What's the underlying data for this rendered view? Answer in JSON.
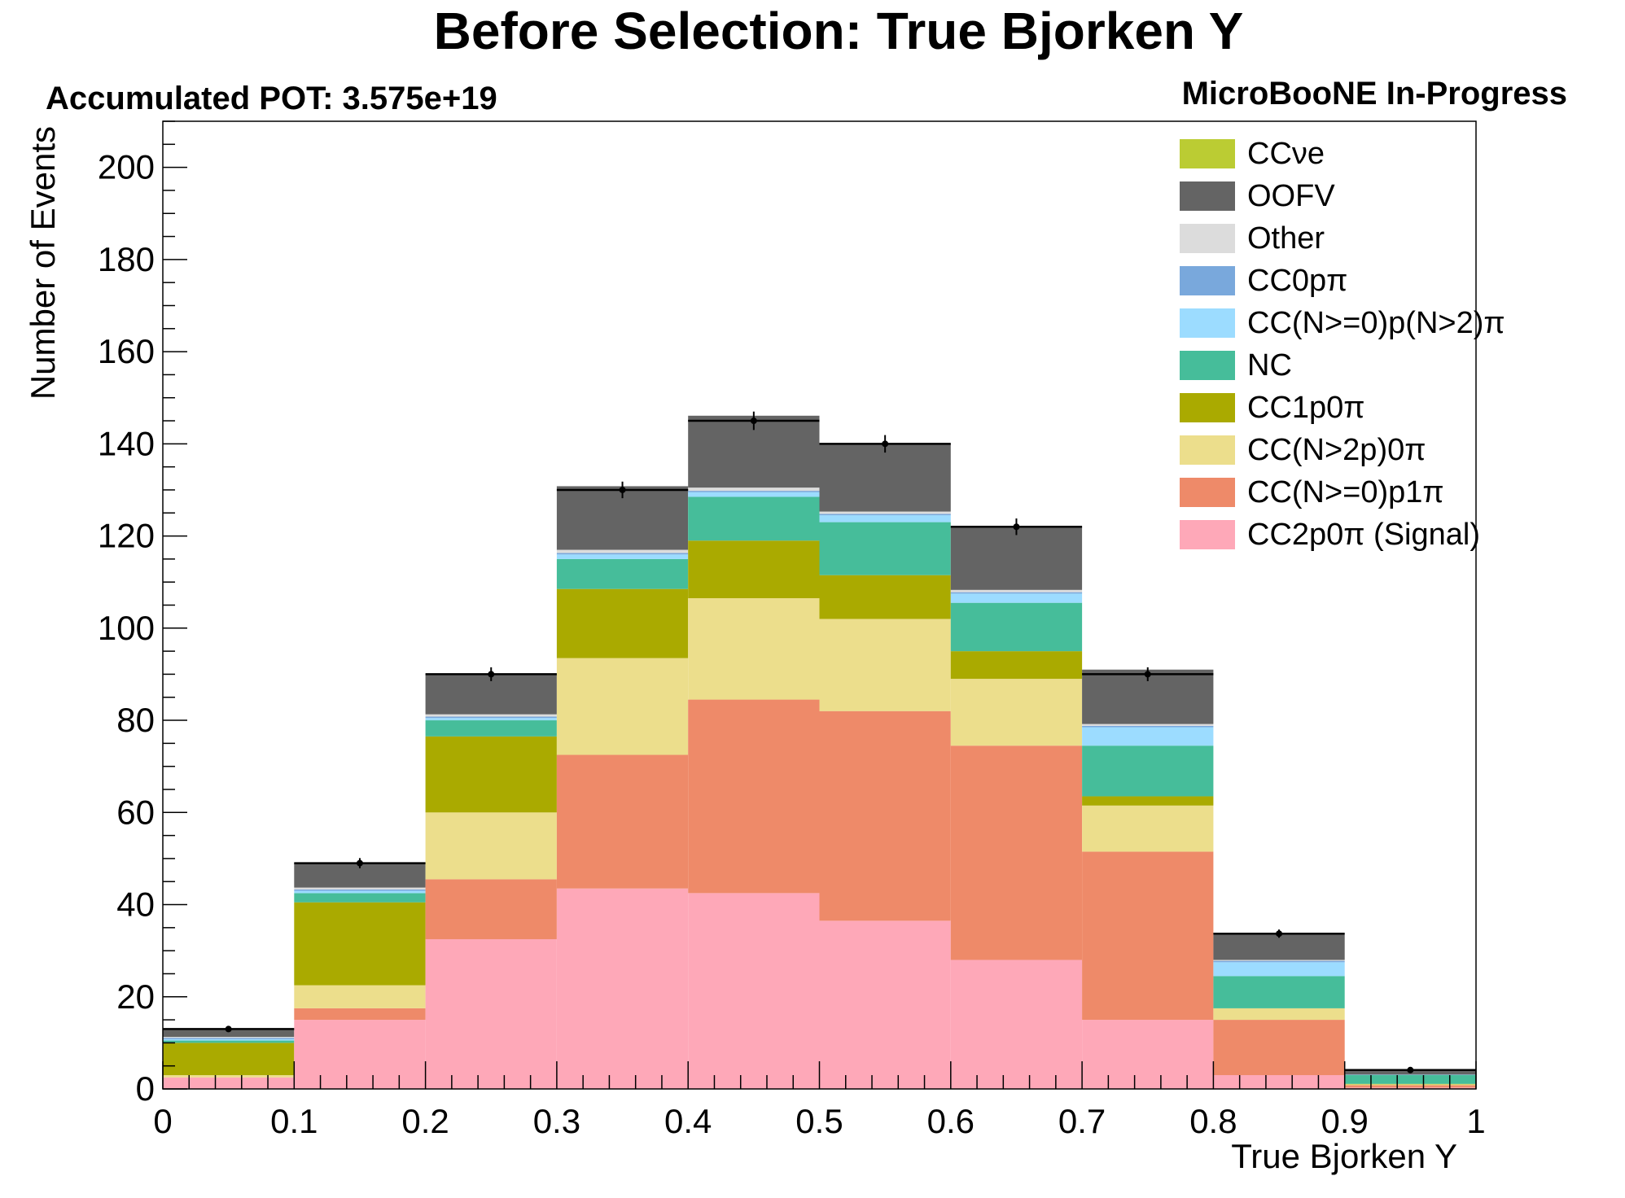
{
  "chart_data": {
    "type": "bar",
    "stacked": true,
    "title": "Before Selection: True Bjorken Y",
    "subtitle_left": "Accumulated POT: 3.575e+19",
    "subtitle_right": "MicroBooNE In-Progress",
    "xlabel": "True Bjorken Y",
    "ylabel": "Number of Events",
    "xlim": [
      0,
      1
    ],
    "ylim": [
      0,
      210
    ],
    "x_ticks": [
      "0",
      "0.1",
      "0.2",
      "0.3",
      "0.4",
      "0.5",
      "0.6",
      "0.7",
      "0.8",
      "0.9",
      "1"
    ],
    "y_ticks": [
      "0",
      "20",
      "40",
      "60",
      "80",
      "100",
      "120",
      "140",
      "160",
      "180",
      "200"
    ],
    "bin_edges": [
      0,
      0.1,
      0.2,
      0.3,
      0.4,
      0.5,
      0.6,
      0.7,
      0.8,
      0.9,
      1.0
    ],
    "legend_position": "top-right",
    "series": [
      {
        "name": "CC2p0π (Signal)",
        "color": "#fea8b8",
        "values": [
          2.5,
          15,
          32.5,
          43.5,
          42.5,
          36.5,
          28,
          15,
          3,
          0.3
        ]
      },
      {
        "name": "CC(N>=0)p1π",
        "color": "#ee8a69",
        "values": [
          0,
          2.5,
          13,
          29,
          42,
          45.5,
          46.5,
          36.5,
          12,
          0.5
        ]
      },
      {
        "name": "CC(N>2p)0π",
        "color": "#ecde8c",
        "values": [
          0.5,
          5,
          14.5,
          21,
          22,
          20,
          14.5,
          10,
          2.5,
          0.2
        ]
      },
      {
        "name": "CC1p0π",
        "color": "#aaaa00",
        "values": [
          7,
          18,
          16.5,
          15,
          12.5,
          9.5,
          6,
          2,
          0,
          0.1
        ]
      },
      {
        "name": "NC",
        "color": "#46bd9a",
        "values": [
          0.5,
          2,
          3.5,
          6.5,
          9.5,
          11.5,
          10.5,
          11,
          7,
          1.9
        ]
      },
      {
        "name": "CC(N>=0)p(N>2)π",
        "color": "#9cdcff",
        "values": [
          0.3,
          0.5,
          0.5,
          1,
          1,
          1.5,
          2,
          4,
          3,
          0.1
        ]
      },
      {
        "name": "CC0pπ",
        "color": "#79a8dc",
        "values": [
          0.3,
          0.3,
          0.3,
          0.3,
          0.3,
          0.3,
          0.3,
          0.3,
          0.3,
          0
        ]
      },
      {
        "name": "Other",
        "color": "#dcdcdc",
        "values": [
          0.2,
          0.4,
          0.5,
          0.7,
          0.7,
          0.5,
          0.5,
          0.4,
          0.2,
          0
        ]
      },
      {
        "name": "OOFV",
        "color": "#646464",
        "values": [
          1.7,
          5.3,
          8.7,
          13.8,
          15.6,
          14.7,
          13.7,
          11.8,
          5.5,
          1.0
        ]
      },
      {
        "name": "CCνe",
        "color": "#bbcc33",
        "values": [
          0,
          0,
          0,
          0,
          0,
          0,
          0,
          0,
          0,
          0
        ]
      }
    ],
    "totals": [
      13,
      49,
      90,
      130,
      145,
      140,
      122,
      90,
      33.7,
      4.1
    ],
    "errors": [
      0.6,
      1.1,
      1.5,
      1.8,
      2.0,
      1.9,
      1.8,
      1.5,
      0.9,
      0.3
    ]
  }
}
